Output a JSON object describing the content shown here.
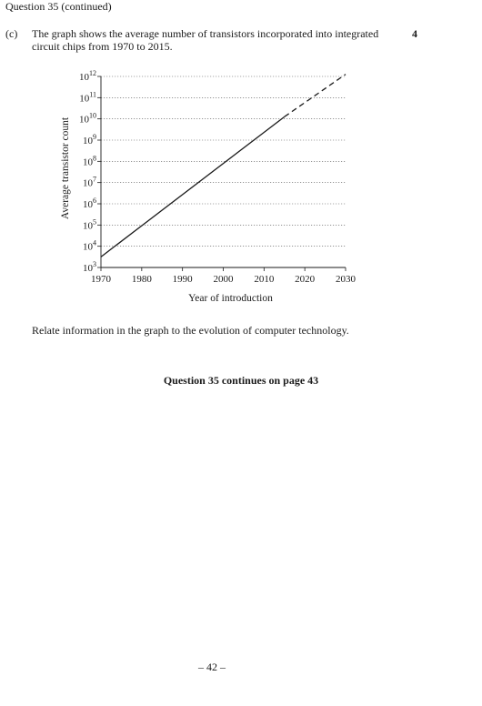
{
  "header": {
    "continued_label": "Question 35 (continued)"
  },
  "question": {
    "part": "(c)",
    "text": "The graph shows the average number of transistors incorporated into integrated circuit chips from 1970 to 2015.",
    "marks": "4",
    "prompt": "Relate information in the graph to the evolution of computer technology."
  },
  "chart_data": {
    "type": "line",
    "xlabel": "Year of introduction",
    "ylabel": "Average transistor count",
    "x_ticks": [
      "1970",
      "1980",
      "1990",
      "2000",
      "2010",
      "2020",
      "2030"
    ],
    "y_ticks": [
      {
        "base": "10",
        "exp": "3"
      },
      {
        "base": "10",
        "exp": "4"
      },
      {
        "base": "10",
        "exp": "5"
      },
      {
        "base": "10",
        "exp": "6"
      },
      {
        "base": "10",
        "exp": "7"
      },
      {
        "base": "10",
        "exp": "8"
      },
      {
        "base": "10",
        "exp": "9"
      },
      {
        "base": "10",
        "exp": "10"
      },
      {
        "base": "10",
        "exp": "11"
      },
      {
        "base": "10",
        "exp": "12"
      }
    ],
    "xlim": [
      1970,
      2030
    ],
    "ylim_log10": [
      3,
      12
    ],
    "y_scale": "log",
    "grid": "horizontal dotted",
    "series": [
      {
        "style": "solid",
        "points": [
          [
            1970,
            3.5
          ],
          [
            2015,
            10.1
          ]
        ]
      },
      {
        "style": "dashed",
        "points": [
          [
            2015,
            10.1
          ],
          [
            2030,
            12.1
          ]
        ]
      }
    ]
  },
  "footer": {
    "continues_label": "Question 35 continues on page 43",
    "page_number": "– 42 –"
  }
}
